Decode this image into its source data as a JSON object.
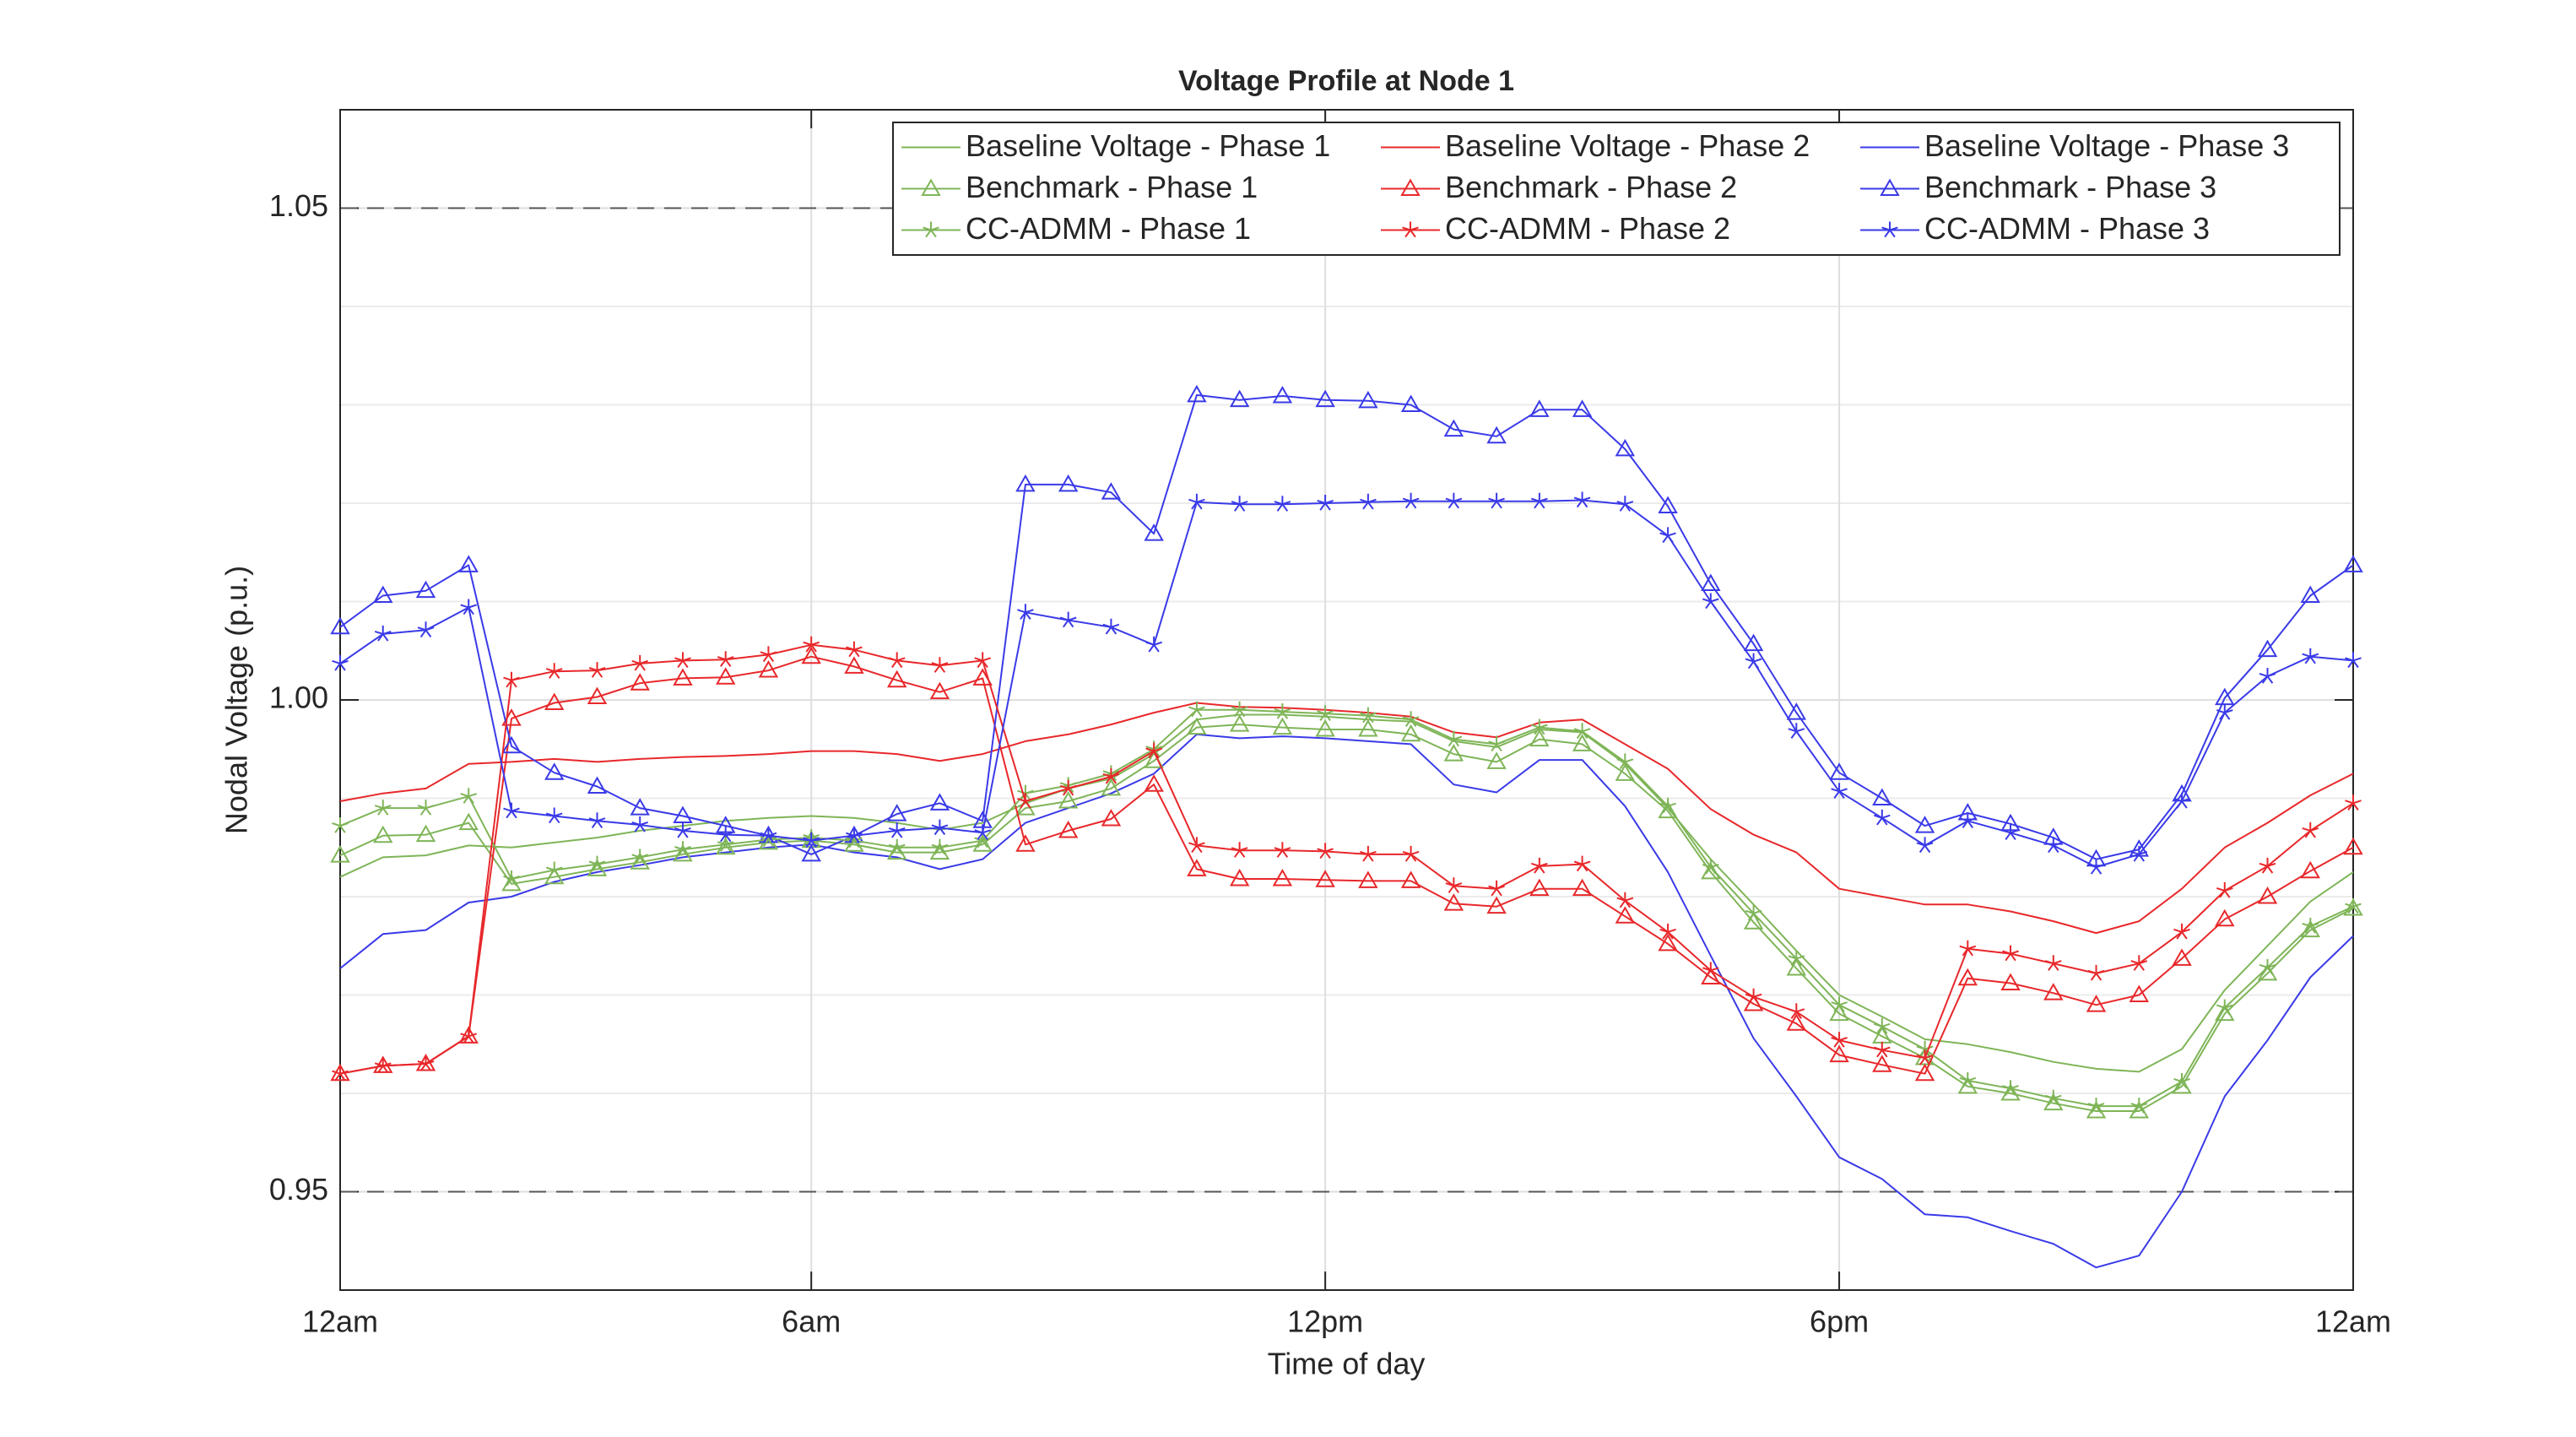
{
  "chart_data": {
    "type": "line",
    "title": "Voltage Profile at Node 1",
    "xlabel": "Time of day",
    "ylabel": "Nodal Voltage (p.u.)",
    "x": [
      0.5,
      1,
      1.5,
      2,
      2.5,
      3,
      3.5,
      4,
      4.5,
      5,
      5.5,
      6,
      6.5,
      7,
      7.5,
      8,
      8.5,
      9,
      9.5,
      10,
      10.5,
      11,
      11.5,
      12,
      12.5,
      13,
      13.5,
      14,
      14.5,
      15,
      15.5,
      16,
      16.5,
      17,
      17.5,
      18,
      18.5,
      19,
      19.5,
      20,
      20.5,
      21,
      21.5,
      22,
      22.5,
      23,
      23.5,
      24
    ],
    "xlim": [
      0.5,
      24
    ],
    "xticks": [
      {
        "value": 0.5,
        "label": "12am"
      },
      {
        "value": 6,
        "label": "6am"
      },
      {
        "value": 12,
        "label": "12pm"
      },
      {
        "value": 18,
        "label": "6pm"
      },
      {
        "value": 24,
        "label": "12am"
      }
    ],
    "ylim": [
      0.94,
      1.06
    ],
    "yticks": [
      0.95,
      {
        "value": 1,
        "label": "1.00"
      },
      1.05
    ],
    "minor_yticks": [
      0.96,
      0.97,
      0.98,
      0.99,
      1.01,
      1.02,
      1.03,
      1.04
    ],
    "reference_lines": [
      0.95,
      1.05
    ],
    "grid": true,
    "legend": "top-right",
    "series": [
      {
        "name": "Baseline Voltage - Phase 1",
        "color": "#7fb558",
        "marker": "none",
        "values": [
          0.982,
          0.984,
          0.9842,
          0.9852,
          0.985,
          0.9855,
          0.986,
          0.9867,
          0.9872,
          0.9877,
          0.988,
          0.9882,
          0.988,
          0.9875,
          0.9868,
          0.9875,
          0.9895,
          0.991,
          0.992,
          0.9945,
          0.998,
          0.9985,
          0.9985,
          0.9983,
          0.998,
          0.9978,
          0.9958,
          0.9952,
          0.997,
          0.9967,
          0.9935,
          0.989,
          0.9838,
          0.9792,
          0.9745,
          0.97,
          0.9678,
          0.9655,
          0.965,
          0.9642,
          0.9632,
          0.9625,
          0.9622,
          0.9645,
          0.9705,
          0.975,
          0.9795,
          0.9825
        ]
      },
      {
        "name": "Baseline Voltage - Phase 2",
        "color": "#e8282b",
        "marker": "none",
        "values": [
          0.9897,
          0.9905,
          0.991,
          0.9935,
          0.9937,
          0.994,
          0.9937,
          0.994,
          0.9942,
          0.9943,
          0.9945,
          0.9948,
          0.9948,
          0.9945,
          0.9938,
          0.9945,
          0.9958,
          0.9965,
          0.9975,
          0.9987,
          0.9997,
          0.9993,
          0.9992,
          0.999,
          0.9987,
          0.9983,
          0.9967,
          0.9962,
          0.9977,
          0.998,
          0.9955,
          0.993,
          0.9889,
          0.9863,
          0.9845,
          0.9808,
          0.98,
          0.9792,
          0.9792,
          0.9785,
          0.9775,
          0.9763,
          0.9775,
          0.9808,
          0.985,
          0.9875,
          0.9903,
          0.9925
        ]
      },
      {
        "name": "Baseline Voltage - Phase 3",
        "color": "#3a3ae8",
        "marker": "none",
        "values": [
          0.9727,
          0.9762,
          0.9766,
          0.9794,
          0.98,
          0.9815,
          0.9825,
          0.9832,
          0.984,
          0.9845,
          0.985,
          0.9853,
          0.9845,
          0.984,
          0.9828,
          0.9838,
          0.9875,
          0.989,
          0.9905,
          0.9925,
          0.9965,
          0.9961,
          0.9963,
          0.9961,
          0.9958,
          0.9955,
          0.9914,
          0.9906,
          0.9939,
          0.9939,
          0.9892,
          0.9825,
          0.974,
          0.9656,
          0.9597,
          0.9535,
          0.9513,
          0.9477,
          0.9474,
          0.946,
          0.9447,
          0.9423,
          0.9435,
          0.95,
          0.9597,
          0.9654,
          0.9718,
          0.976
        ]
      },
      {
        "name": "Benchmark - Phase 1",
        "color": "#7fb558",
        "marker": "triangle",
        "values": [
          0.9842,
          0.9862,
          0.9863,
          0.9875,
          0.9813,
          0.982,
          0.9828,
          0.9835,
          0.9843,
          0.985,
          0.9855,
          0.9857,
          0.9853,
          0.9845,
          0.9845,
          0.9853,
          0.989,
          0.9897,
          0.991,
          0.9938,
          0.9972,
          0.9975,
          0.9972,
          0.997,
          0.997,
          0.9965,
          0.9945,
          0.9937,
          0.996,
          0.9955,
          0.9925,
          0.9887,
          0.9825,
          0.9774,
          0.9727,
          0.9681,
          0.9658,
          0.9636,
          0.9607,
          0.96,
          0.959,
          0.9582,
          0.9582,
          0.9607,
          0.9681,
          0.9722,
          0.9766,
          0.9788
        ]
      },
      {
        "name": "Benchmark - Phase 2",
        "color": "#e8282b",
        "marker": "triangle",
        "values": [
          0.962,
          0.9628,
          0.963,
          0.9658,
          0.9981,
          0.9997,
          1.0003,
          1.0017,
          1.0022,
          1.0023,
          1.003,
          1.0044,
          1.0034,
          1.002,
          1.0008,
          1.0022,
          0.9853,
          0.9867,
          0.9879,
          0.9914,
          0.9828,
          0.9818,
          0.9818,
          0.9817,
          0.9816,
          0.9816,
          0.9793,
          0.979,
          0.9808,
          0.9808,
          0.978,
          0.9752,
          0.9718,
          0.9691,
          0.9671,
          0.9639,
          0.9629,
          0.962,
          0.9717,
          0.9712,
          0.9702,
          0.969,
          0.97,
          0.9737,
          0.9777,
          0.98,
          0.9826,
          0.985
        ]
      },
      {
        "name": "Benchmark - Phase 3",
        "color": "#3a3ae8",
        "marker": "triangle",
        "values": [
          1.0074,
          1.0106,
          1.0111,
          1.0137,
          0.9953,
          0.9926,
          0.9912,
          0.989,
          0.9882,
          0.9872,
          0.9862,
          0.9843,
          0.9862,
          0.9884,
          0.9895,
          0.9877,
          1.0219,
          1.0219,
          1.0211,
          1.0169,
          1.031,
          1.0305,
          1.0309,
          1.0305,
          1.0304,
          1.03,
          1.0275,
          1.0268,
          1.0295,
          1.0295,
          1.0255,
          1.0197,
          1.0118,
          1.0057,
          0.9987,
          0.9926,
          0.99,
          0.9872,
          0.9885,
          0.9874,
          0.986,
          0.9838,
          0.9848,
          0.9904,
          1.0002,
          1.0051,
          1.0106,
          1.0137
        ]
      },
      {
        "name": "CC-ADMM - Phase 1",
        "color": "#7fb558",
        "marker": "star",
        "values": [
          0.9872,
          0.989,
          0.989,
          0.9902,
          0.9818,
          0.9827,
          0.9833,
          0.984,
          0.9848,
          0.9853,
          0.9858,
          0.986,
          0.9857,
          0.985,
          0.985,
          0.9857,
          0.9905,
          0.9913,
          0.9925,
          0.995,
          0.999,
          0.999,
          0.9988,
          0.9986,
          0.9984,
          0.998,
          0.996,
          0.9955,
          0.9972,
          0.9968,
          0.9937,
          0.9892,
          0.983,
          0.9783,
          0.9737,
          0.969,
          0.9668,
          0.9645,
          0.9613,
          0.9605,
          0.9595,
          0.9587,
          0.9587,
          0.9612,
          0.9687,
          0.9728,
          0.977,
          0.979
        ]
      },
      {
        "name": "CC-ADMM - Phase 2",
        "color": "#e8282b",
        "marker": "star",
        "values": [
          0.962,
          0.9628,
          0.963,
          0.9658,
          1.002,
          1.0029,
          1.003,
          1.0037,
          1.004,
          1.0041,
          1.0046,
          1.0056,
          1.0051,
          1.004,
          1.0035,
          1.004,
          0.9897,
          0.991,
          0.9922,
          0.9948,
          0.9852,
          0.9847,
          0.9847,
          0.9846,
          0.9843,
          0.9843,
          0.9811,
          0.9808,
          0.9831,
          0.9833,
          0.9796,
          0.9764,
          0.9725,
          0.9698,
          0.9683,
          0.9654,
          0.9644,
          0.9636,
          0.9747,
          0.9742,
          0.9732,
          0.9722,
          0.9732,
          0.9764,
          0.9806,
          0.9831,
          0.9867,
          0.9895
        ]
      },
      {
        "name": "CC-ADMM - Phase 3",
        "color": "#3a3ae8",
        "marker": "star",
        "values": [
          1.0037,
          1.0067,
          1.0071,
          1.0094,
          0.9887,
          0.9882,
          0.9877,
          0.9873,
          0.9867,
          0.9863,
          0.9862,
          0.9857,
          0.9862,
          0.9867,
          0.987,
          0.9865,
          1.0089,
          1.0081,
          1.0074,
          1.0056,
          1.0201,
          1.0199,
          1.0199,
          1.02,
          1.0201,
          1.0202,
          1.0202,
          1.0202,
          1.0202,
          1.0203,
          1.0199,
          1.0167,
          1.01,
          1.0039,
          0.9968,
          0.9907,
          0.988,
          0.9852,
          0.9877,
          0.9865,
          0.9852,
          0.983,
          0.9843,
          0.9897,
          0.9987,
          1.0024,
          1.0044,
          1.004
        ]
      }
    ]
  }
}
